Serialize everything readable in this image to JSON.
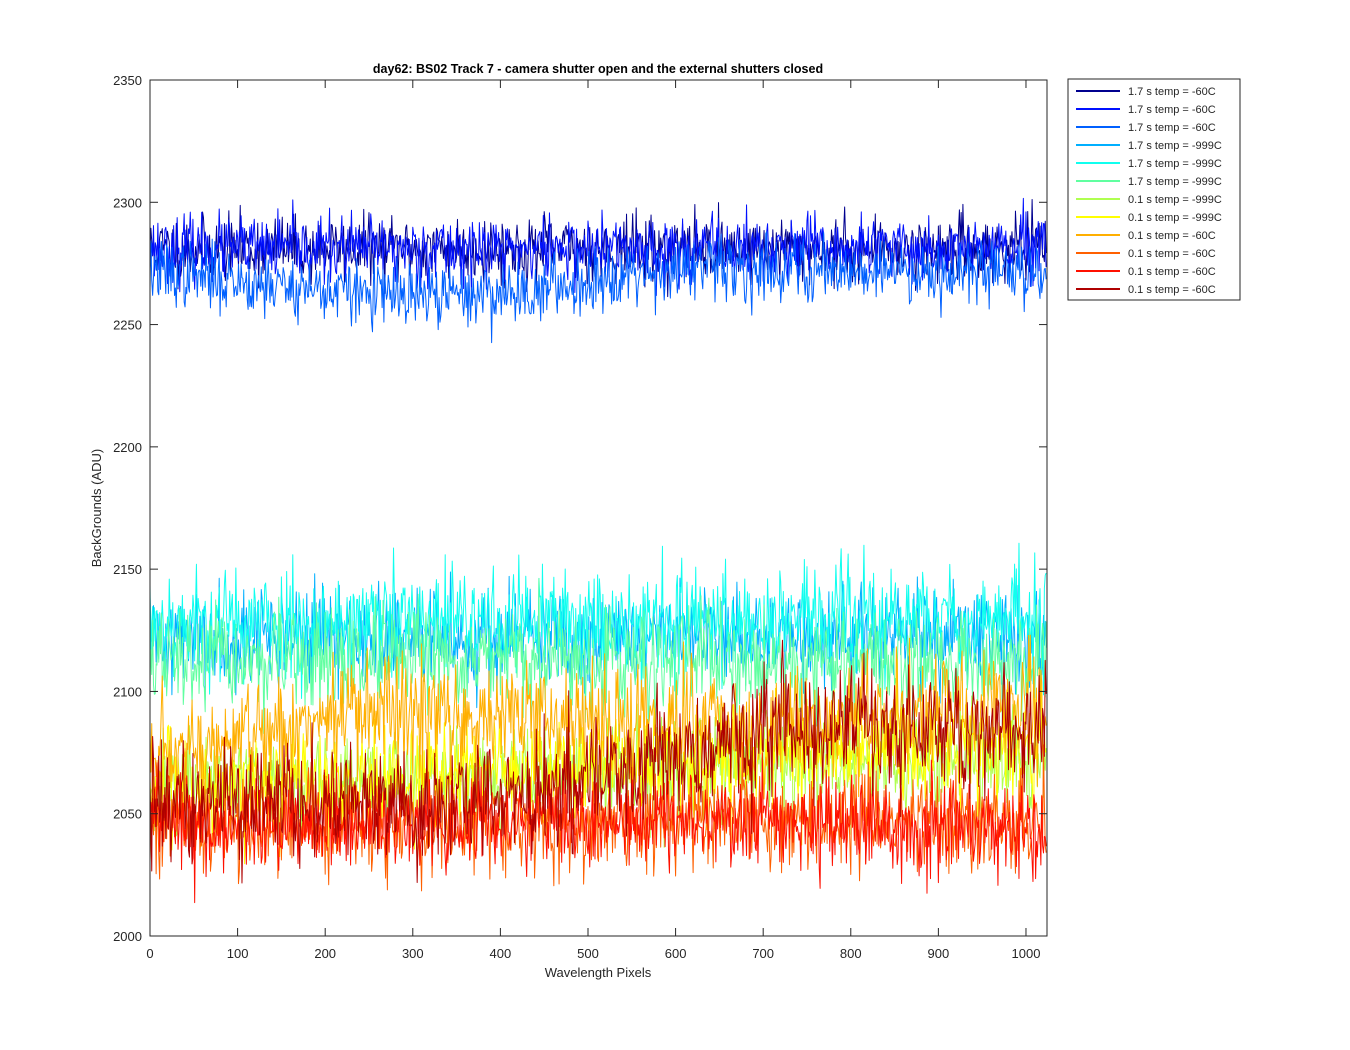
{
  "chart_data": {
    "type": "line",
    "title": "day62: BS02  Track 7 - camera shutter open and the external shutters closed",
    "xlabel": "Wavelength Pixels",
    "ylabel": "BackGrounds (ADU)",
    "xlim": [
      0,
      1024
    ],
    "ylim": [
      2000,
      2350
    ],
    "x_ticks": [
      0,
      100,
      200,
      300,
      400,
      500,
      600,
      700,
      800,
      900,
      1000
    ],
    "y_ticks": [
      2000,
      2050,
      2100,
      2150,
      2200,
      2250,
      2300,
      2350
    ],
    "grid": false,
    "legend_position": "outside-top-right",
    "n_points": 1024,
    "series": [
      {
        "name": "1.7 s temp = -60C",
        "color": "#00008f",
        "baseline": [
          [
            0,
            2281
          ],
          [
            1024,
            2281
          ]
        ],
        "noise": 6.5,
        "seed": 11
      },
      {
        "name": "1.7 s temp = -60C",
        "color": "#0010ff",
        "baseline": [
          [
            0,
            2281
          ],
          [
            1024,
            2281
          ]
        ],
        "noise": 6.5,
        "seed": 23
      },
      {
        "name": "1.7 s temp = -60C",
        "color": "#0060ff",
        "baseline": [
          [
            0,
            2272
          ],
          [
            150,
            2266
          ],
          [
            300,
            2261
          ],
          [
            450,
            2264
          ],
          [
            550,
            2272
          ],
          [
            700,
            2273
          ],
          [
            900,
            2272
          ],
          [
            1024,
            2272
          ]
        ],
        "noise": 6.5,
        "seed": 37
      },
      {
        "name": "1.7 s temp = -999C",
        "color": "#00afff",
        "baseline": [
          [
            0,
            2122
          ],
          [
            1024,
            2122
          ]
        ],
        "noise": 10,
        "seed": 41
      },
      {
        "name": "1.7 s temp = -999C",
        "color": "#10ffef",
        "baseline": [
          [
            0,
            2128
          ],
          [
            1024,
            2130
          ]
        ],
        "noise": 11,
        "seed": 53
      },
      {
        "name": "1.7 s temp = -999C",
        "color": "#60ffa0",
        "baseline": [
          [
            0,
            2112
          ],
          [
            1024,
            2112
          ]
        ],
        "noise": 10,
        "seed": 67
      },
      {
        "name": "0.1 s temp = -999C",
        "color": "#afff50",
        "baseline": [
          [
            0,
            2062
          ],
          [
            300,
            2065
          ],
          [
            600,
            2068
          ],
          [
            1024,
            2072
          ]
        ],
        "noise": 10,
        "seed": 71
      },
      {
        "name": "0.1 s temp = -999C",
        "color": "#ffff00",
        "baseline": [
          [
            0,
            2058
          ],
          [
            300,
            2064
          ],
          [
            600,
            2072
          ],
          [
            1024,
            2078
          ]
        ],
        "noise": 11,
        "seed": 83
      },
      {
        "name": "0.1 s temp = -60C",
        "color": "#ffaf00",
        "baseline": [
          [
            0,
            2068
          ],
          [
            200,
            2090
          ],
          [
            450,
            2090
          ],
          [
            700,
            2085
          ],
          [
            1024,
            2095
          ]
        ],
        "noise": 12,
        "seed": 97
      },
      {
        "name": "0.1 s temp = -60C",
        "color": "#ff6000",
        "baseline": [
          [
            0,
            2045
          ],
          [
            1024,
            2048
          ]
        ],
        "noise": 10,
        "seed": 101
      },
      {
        "name": "0.1 s temp = -60C",
        "color": "#ff1000",
        "baseline": [
          [
            0,
            2045
          ],
          [
            300,
            2046
          ],
          [
            600,
            2048
          ],
          [
            1024,
            2042
          ]
        ],
        "noise": 9,
        "seed": 113
      },
      {
        "name": "0.1 s temp = -60C",
        "color": "#af0000",
        "baseline": [
          [
            0,
            2055
          ],
          [
            300,
            2052
          ],
          [
            500,
            2065
          ],
          [
            700,
            2085
          ],
          [
            1024,
            2085
          ]
        ],
        "noise": 12,
        "seed": 127
      }
    ]
  }
}
